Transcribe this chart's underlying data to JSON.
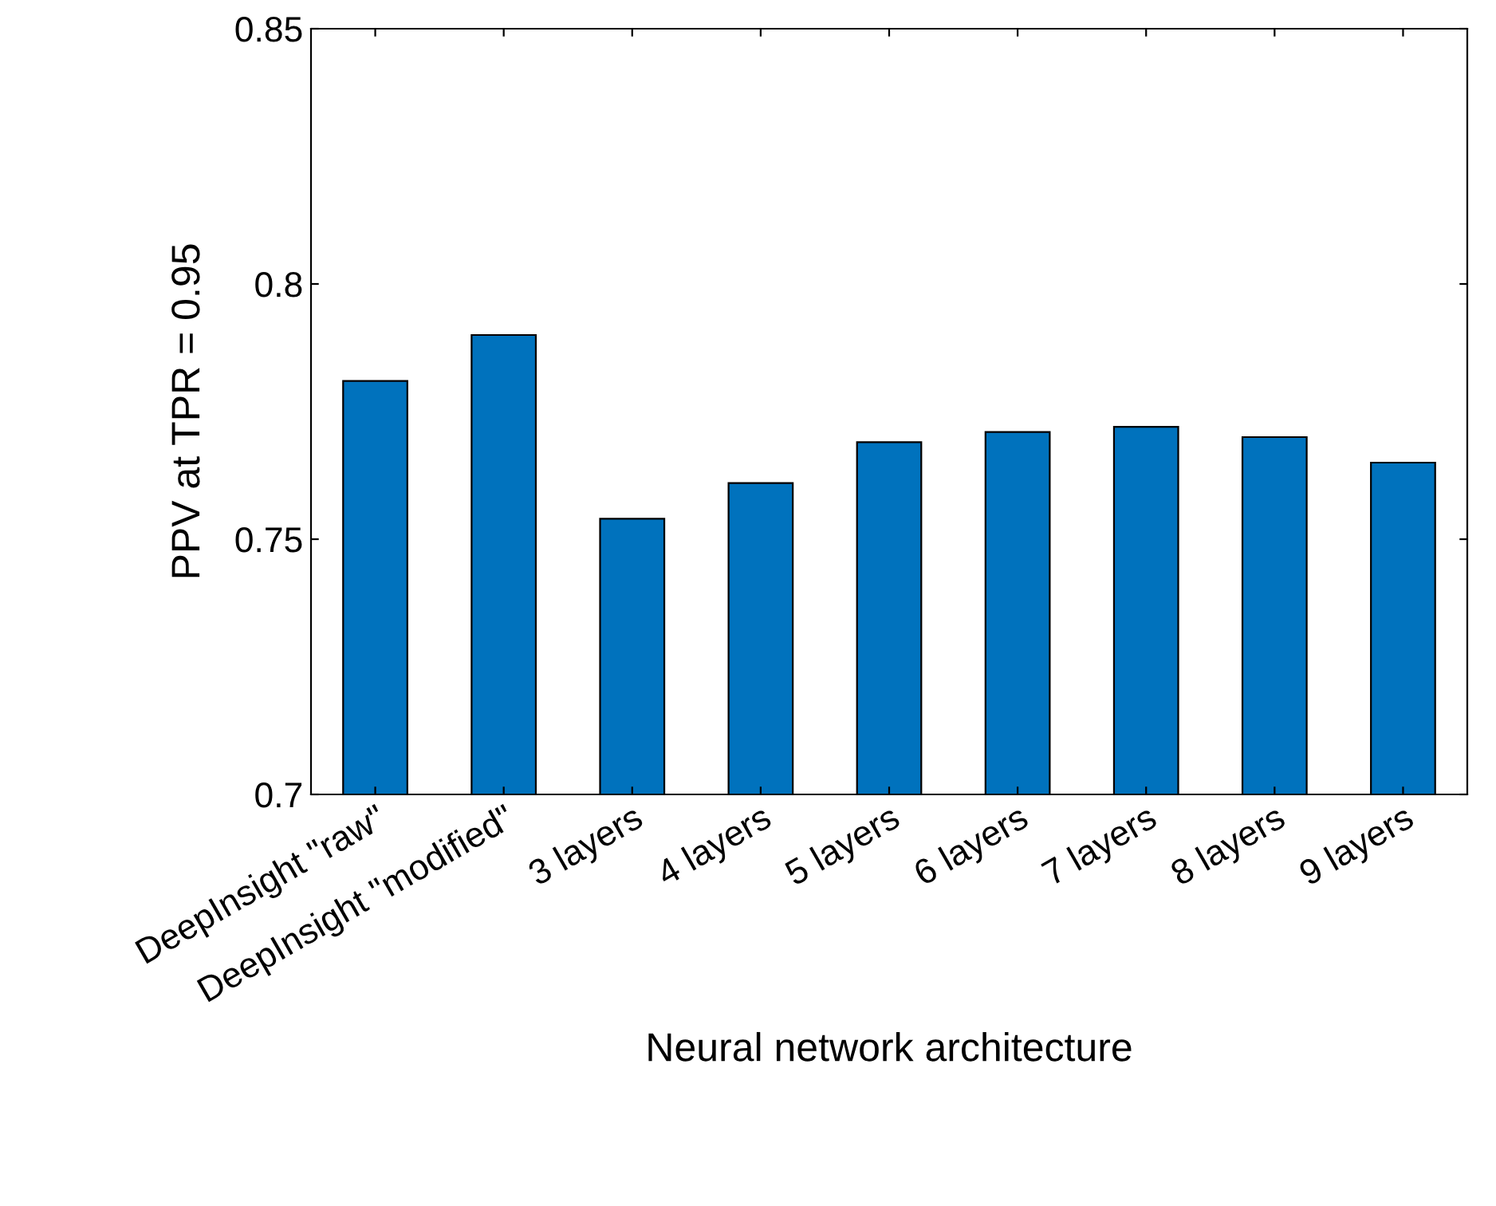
{
  "chart_data": {
    "type": "bar",
    "xlabel": "Neural network architecture",
    "ylabel": "PPV at TPR = 0.95",
    "categories": [
      "DeepInsight \"raw\"",
      "DeepInsight \"modified\"",
      "3 layers",
      "4 layers",
      "5 layers",
      "6 layers",
      "7 layers",
      "8 layers",
      "9 layers"
    ],
    "values": [
      0.781,
      0.79,
      0.754,
      0.761,
      0.769,
      0.771,
      0.772,
      0.77,
      0.765
    ],
    "color": "#0072bd",
    "ylim": [
      0.7,
      0.85
    ],
    "yticks": [
      0.7,
      0.75,
      0.8,
      0.85
    ],
    "grid": false
  }
}
